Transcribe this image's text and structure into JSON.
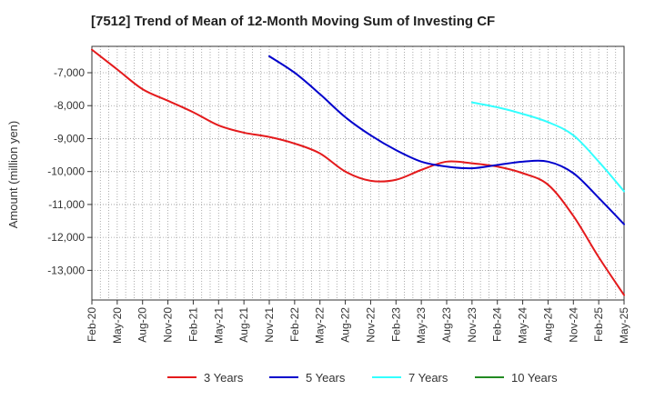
{
  "chart_data": {
    "type": "line",
    "title": "[7512]  Trend of Mean of 12-Month Moving Sum of Investing CF",
    "xlabel": "",
    "ylabel": "Amount (million yen)",
    "ylim": [
      -13900,
      -6200
    ],
    "yticks": [
      -7000,
      -8000,
      -9000,
      -10000,
      -11000,
      -12000,
      -13000
    ],
    "ytick_labels": [
      "-7,000",
      "-8,000",
      "-9,000",
      "-10,000",
      "-11,000",
      "-12,000",
      "-13,000"
    ],
    "x_ticks": [
      "Feb-20",
      "May-20",
      "Aug-20",
      "Nov-20",
      "Feb-21",
      "May-21",
      "Aug-21",
      "Nov-21",
      "Feb-22",
      "May-22",
      "Aug-22",
      "Nov-22",
      "Feb-23",
      "May-23",
      "Aug-23",
      "Nov-23",
      "Feb-24",
      "May-24",
      "Aug-24",
      "Nov-24",
      "Feb-25",
      "May-25"
    ],
    "x_range_months": [
      0,
      63
    ],
    "grid": true,
    "legend_position": "bottom",
    "series": [
      {
        "name": "3 Years",
        "color": "#e41a1c",
        "points": [
          [
            0,
            -6300
          ],
          [
            3,
            -6900
          ],
          [
            6,
            -7500
          ],
          [
            9,
            -7850
          ],
          [
            12,
            -8200
          ],
          [
            15,
            -8600
          ],
          [
            18,
            -8820
          ],
          [
            21,
            -8950
          ],
          [
            24,
            -9150
          ],
          [
            27,
            -9450
          ],
          [
            30,
            -10000
          ],
          [
            33,
            -10280
          ],
          [
            36,
            -10250
          ],
          [
            39,
            -9950
          ],
          [
            42,
            -9700
          ],
          [
            45,
            -9750
          ],
          [
            48,
            -9850
          ],
          [
            51,
            -10050
          ],
          [
            54,
            -10400
          ],
          [
            57,
            -11350
          ],
          [
            60,
            -12600
          ],
          [
            63,
            -13750
          ]
        ]
      },
      {
        "name": "5 Years",
        "color": "#0000cc",
        "points": [
          [
            21,
            -6500
          ],
          [
            24,
            -7000
          ],
          [
            27,
            -7650
          ],
          [
            30,
            -8350
          ],
          [
            33,
            -8900
          ],
          [
            36,
            -9350
          ],
          [
            39,
            -9700
          ],
          [
            42,
            -9850
          ],
          [
            45,
            -9900
          ],
          [
            48,
            -9800
          ],
          [
            51,
            -9700
          ],
          [
            54,
            -9700
          ],
          [
            57,
            -10050
          ],
          [
            60,
            -10800
          ],
          [
            63,
            -11600
          ]
        ]
      },
      {
        "name": "7 Years",
        "color": "#33ffff",
        "points": [
          [
            45,
            -7900
          ],
          [
            48,
            -8050
          ],
          [
            51,
            -8250
          ],
          [
            54,
            -8500
          ],
          [
            57,
            -8900
          ],
          [
            60,
            -9700
          ],
          [
            63,
            -10600
          ]
        ]
      },
      {
        "name": "10 Years",
        "color": "#228b22",
        "points": []
      }
    ]
  }
}
